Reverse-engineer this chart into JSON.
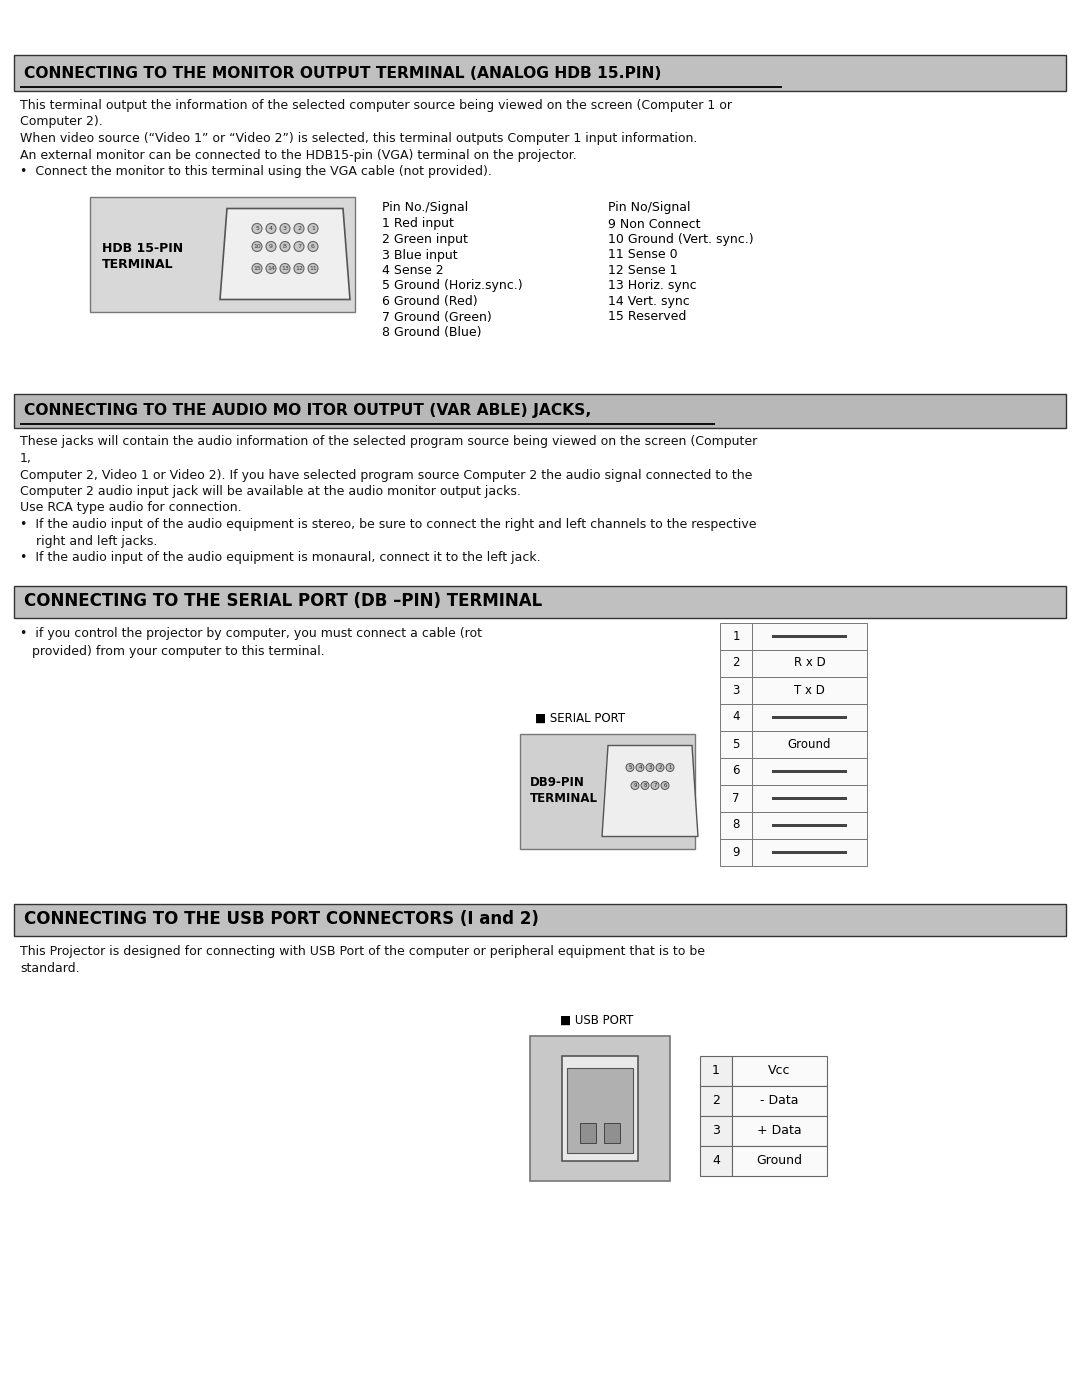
{
  "bg_color": "#ffffff",
  "header_bg": "#c0c0c0",
  "header_bg2": "#b8b8b8",
  "section1_title": "CONNECTING TO THE MONITOR OUTPUT TERMINAL (ANALOG HDB 15.PIN)",
  "section1_body": [
    "This terminal output the information of the selected computer source being viewed on the screen (Computer 1 or",
    "Computer 2).",
    "When video source (“Video 1” or “Video 2”) is selected, this terminal outputs Computer 1 input information.",
    "An external monitor can be connected to the HDB15-pin (VGA) terminal on the projector.",
    "•  Connect the monitor to this terminal using the VGA cable (not provided)."
  ],
  "section1_pin_header1": "Pin No./Signal",
  "section1_pins_left": [
    "1 Red input",
    "2 Green input",
    "3 Blue input",
    "4 Sense 2",
    "5 Ground (Horiz.sync.)",
    "6 Ground (Red)",
    "7 Ground (Green)",
    "8 Ground (Blue)"
  ],
  "section1_pin_header2": "Pin No/Signal",
  "section1_pins_right": [
    "9 Non Connect",
    "10 Ground (Vert. sync.)",
    "11 Sense 0",
    "12 Sense 1",
    "13 Horiz. sync",
    "14 Vert. sync",
    "15 Reserved"
  ],
  "section2_title": "CONNECTING TO THE AUDIO MO ITOR OUTPUT (VAR ABLE) JACKS,",
  "section2_body": [
    "These jacks will contain the audio information of the selected program source being viewed on the screen (Computer",
    "1,",
    "Computer 2, Video 1 or Video 2). If you have selected program source Computer 2 the audio signal connected to the",
    "Computer 2 audio input jack will be available at the audio monitor output jacks.",
    "Use RCA type audio for connection.",
    "•  If the audio input of the audio equipment is stereo, be sure to connect the right and left channels to the respective",
    "    right and left jacks.",
    "•  If the audio input of the audio equipment is monaural, connect it to the left jack."
  ],
  "section3_title": "CONNECTING TO THE SERIAL PORT (DB –PIN) TERMINAL",
  "section3_body": [
    "•  if you control the projector by computer, you must connect a cable (rot",
    "   provided) from your computer to this terminal."
  ],
  "serial_label": "■ SERIAL PORT",
  "serial_table_rows": [
    "1",
    "2",
    "3",
    "4",
    "5",
    "6",
    "7",
    "8",
    "9"
  ],
  "serial_table_vals": [
    "",
    "R x D",
    "T x D",
    "",
    "Ground",
    "",
    "",
    "",
    ""
  ],
  "section4_title": "CONNECTING TO THE USB PORT CONNECTORS (I and 2)",
  "section4_body": [
    "This Projector is designed for connecting with USB Port of the computer or peripheral equipment that is to be",
    "standard."
  ],
  "usb_label": "■ USB PORT",
  "usb_table_rows": [
    "1",
    "2",
    "3",
    "4"
  ],
  "usb_table_vals": [
    "Vcc",
    "- Data",
    "+ Data",
    "Ground"
  ]
}
